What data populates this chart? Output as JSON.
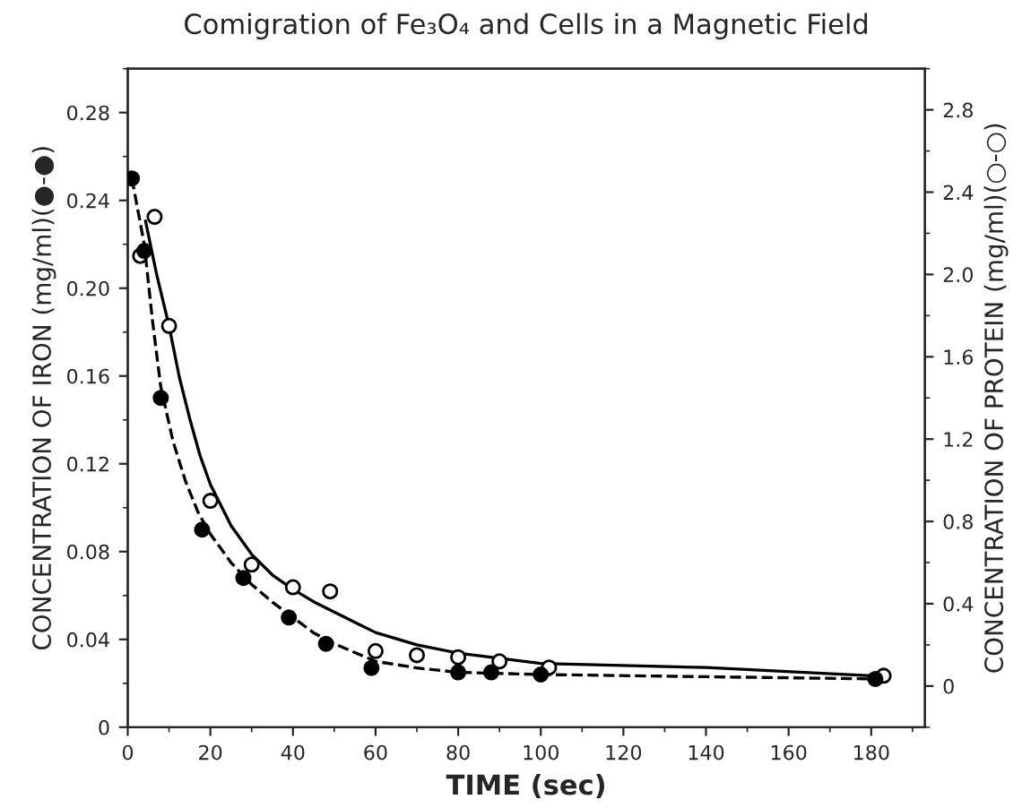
{
  "chart_data": {
    "type": "scatter",
    "title": "Comigration of Fe₃O₄ and Cells in a Magnetic Field",
    "xlabel": "TIME (sec)",
    "ylabel": "CONCENTRATION OF IRON (mg/ml)(●-●)",
    "y2label": "CONCENTRATION OF PROTEIN (mg/ml)(○-○)",
    "xlim": [
      0,
      193
    ],
    "xticks": [
      0,
      20,
      40,
      60,
      80,
      100,
      120,
      140,
      160,
      180
    ],
    "ylim": [
      0,
      0.3
    ],
    "yticks": [
      0,
      {
        "value": 0.04,
        "label": "0.04"
      },
      {
        "value": 0.08,
        "label": "0.08"
      },
      {
        "value": 0.12,
        "label": "0.12"
      },
      {
        "value": 0.16,
        "label": "0.16"
      },
      {
        "value": 0.2,
        "label": "0.20"
      },
      {
        "value": 0.24,
        "label": "0.24"
      },
      {
        "value": 0.28,
        "label": "0.28"
      }
    ],
    "y2lim": [
      -0.2,
      3.0
    ],
    "y2ticks": [
      0,
      0.4,
      0.8,
      1.2,
      1.6,
      {
        "value": 2.0,
        "label": "2.0"
      },
      2.4,
      2.8
    ],
    "grid": false,
    "series": [
      {
        "color": "#000000",
        "marker": "circle",
        "x": [
          1,
          4,
          8,
          18,
          28,
          39,
          48,
          59,
          80,
          88,
          100,
          181
        ],
        "values": [
          0.25,
          0.217,
          0.15,
          0.09,
          0.068,
          0.05,
          0.038,
          0.027,
          0.025,
          0.025,
          0.024,
          0.022
        ]
      },
      {
        "type": "line",
        "color": "#000000",
        "line_style": "dashed",
        "x": [
          1,
          4,
          6,
          8,
          11,
          14,
          17,
          20,
          25,
          30,
          35,
          40,
          45,
          50,
          55,
          60,
          70,
          80,
          100,
          140,
          180
        ],
        "values": [
          0.25,
          0.22,
          0.185,
          0.155,
          0.13,
          0.112,
          0.098,
          0.088,
          0.075,
          0.065,
          0.057,
          0.05,
          0.043,
          0.038,
          0.034,
          0.03,
          0.027,
          0.025,
          0.024,
          0.023,
          0.022
        ]
      },
      {
        "axis": "y2",
        "color": "#000000",
        "marker": "circle",
        "x": [
          3,
          6.5,
          10,
          20,
          30,
          40,
          49,
          60,
          70,
          80,
          90,
          102,
          183
        ],
        "values": [
          2.09,
          2.28,
          1.75,
          0.9,
          0.59,
          0.48,
          0.46,
          0.17,
          0.15,
          0.14,
          0.12,
          0.09,
          0.05
        ]
      },
      {
        "type": "line",
        "axis": "y2",
        "color": "#000000",
        "line_style": "solid",
        "x": [
          4.3,
          7,
          10,
          12.5,
          15,
          17.5,
          20,
          25,
          30,
          35,
          40,
          45,
          50,
          55,
          60,
          70,
          80,
          100,
          140,
          180
        ],
        "values": [
          2.26,
          2.0,
          1.75,
          1.5,
          1.3,
          1.12,
          0.98,
          0.78,
          0.64,
          0.54,
          0.47,
          0.41,
          0.36,
          0.31,
          0.26,
          0.2,
          0.16,
          0.11,
          0.09,
          0.05
        ]
      }
    ]
  }
}
